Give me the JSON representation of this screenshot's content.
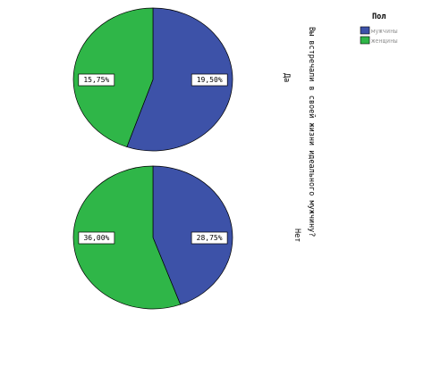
{
  "chart_data": {
    "type": "pie",
    "question_label": "Вы встречали в своей жизни идеального мужчину?",
    "legend": {
      "title": "Пол",
      "placement": "top-right",
      "entries": [
        "мужчины",
        "женщины"
      ]
    },
    "colors": {
      "мужчины": "#3d52a8",
      "женщины": "#2fb648"
    },
    "categories": [
      "мужчины",
      "женщины"
    ],
    "panels": [
      {
        "row_label": "Да",
        "slices": [
          {
            "category": "мужчины",
            "value": 19.5,
            "label": "19,50%"
          },
          {
            "category": "женщины",
            "value": 15.75,
            "label": "15,75%"
          }
        ]
      },
      {
        "row_label": "Нет",
        "slices": [
          {
            "category": "мужчины",
            "value": 28.75,
            "label": "28,75%"
          },
          {
            "category": "женщины",
            "value": 36.0,
            "label": "36,00%"
          }
        ]
      }
    ]
  }
}
